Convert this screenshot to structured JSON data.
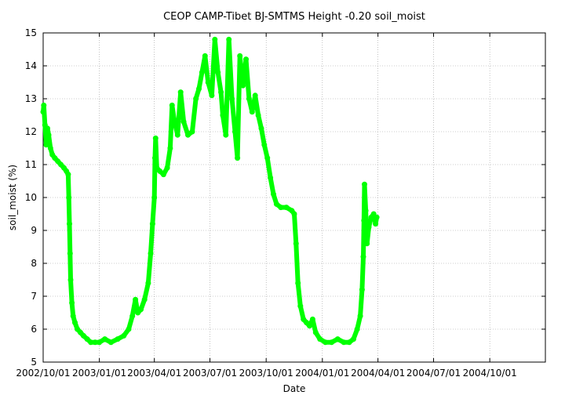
{
  "chart_data": {
    "type": "scatter",
    "title": "CEOP CAMP-Tibet BJ-SMTMS Height -0.20 soil_moist",
    "xlabel": "Date",
    "ylabel": "soil_moist (%)",
    "ylim": [
      5,
      15
    ],
    "xlim": [
      "2002-10-01",
      "2004-12-31"
    ],
    "y_ticks": [
      "5",
      "6",
      "7",
      "8",
      "9",
      "10",
      "11",
      "12",
      "13",
      "14",
      "15"
    ],
    "x_ticks": [
      "2002/10/01",
      "2003/01/01",
      "2003/04/01",
      "2003/07/01",
      "2003/10/01",
      "2004/01/01",
      "2004/04/01",
      "2004/07/01",
      "2004/10/01"
    ],
    "grid": true,
    "marker_color": "#00ff00",
    "series": [
      {
        "points": [
          [
            "2002-10-01",
            12.6
          ],
          [
            "2002-10-02",
            12.8
          ],
          [
            "2002-10-04",
            12.2
          ],
          [
            "2002-10-06",
            11.6
          ],
          [
            "2002-10-08",
            12.1
          ],
          [
            "2002-10-10",
            11.9
          ],
          [
            "2002-10-13",
            11.5
          ],
          [
            "2002-10-16",
            11.3
          ],
          [
            "2002-10-20",
            11.2
          ],
          [
            "2002-10-25",
            11.1
          ],
          [
            "2002-10-30",
            11.0
          ],
          [
            "2002-11-04",
            10.9
          ],
          [
            "2002-11-08",
            10.8
          ],
          [
            "2002-11-11",
            10.7
          ],
          [
            "2002-11-12",
            10.0
          ],
          [
            "2002-11-13",
            9.2
          ],
          [
            "2002-11-14",
            8.3
          ],
          [
            "2002-11-15",
            7.5
          ],
          [
            "2002-11-17",
            6.8
          ],
          [
            "2002-11-19",
            6.4
          ],
          [
            "2002-11-22",
            6.2
          ],
          [
            "2002-11-26",
            6.0
          ],
          [
            "2002-12-01",
            5.9
          ],
          [
            "2002-12-06",
            5.8
          ],
          [
            "2002-12-12",
            5.7
          ],
          [
            "2002-12-18",
            5.6
          ],
          [
            "2002-12-25",
            5.6
          ],
          [
            "2003-01-01",
            5.6
          ],
          [
            "2003-01-10",
            5.7
          ],
          [
            "2003-01-20",
            5.6
          ],
          [
            "2003-01-31",
            5.7
          ],
          [
            "2003-02-10",
            5.8
          ],
          [
            "2003-02-18",
            6.0
          ],
          [
            "2003-02-24",
            6.4
          ],
          [
            "2003-03-01",
            6.9
          ],
          [
            "2003-03-05",
            6.5
          ],
          [
            "2003-03-10",
            6.6
          ],
          [
            "2003-03-16",
            6.9
          ],
          [
            "2003-03-22",
            7.4
          ],
          [
            "2003-03-26",
            8.3
          ],
          [
            "2003-03-29",
            9.2
          ],
          [
            "2003-04-01",
            10.0
          ],
          [
            "2003-04-02",
            11.2
          ],
          [
            "2003-04-03",
            11.8
          ],
          [
            "2003-04-05",
            10.9
          ],
          [
            "2003-04-10",
            10.8
          ],
          [
            "2003-04-16",
            10.7
          ],
          [
            "2003-04-22",
            10.9
          ],
          [
            "2003-04-27",
            11.5
          ],
          [
            "2003-04-30",
            12.8
          ],
          [
            "2003-05-04",
            12.3
          ],
          [
            "2003-05-09",
            11.9
          ],
          [
            "2003-05-14",
            13.2
          ],
          [
            "2003-05-19",
            12.3
          ],
          [
            "2003-05-26",
            11.9
          ],
          [
            "2003-06-02",
            12.0
          ],
          [
            "2003-06-08",
            13.0
          ],
          [
            "2003-06-13",
            13.3
          ],
          [
            "2003-06-18",
            13.8
          ],
          [
            "2003-06-23",
            14.3
          ],
          [
            "2003-06-28",
            13.5
          ],
          [
            "2003-07-04",
            13.1
          ],
          [
            "2003-07-09",
            14.8
          ],
          [
            "2003-07-14",
            13.8
          ],
          [
            "2003-07-19",
            13.2
          ],
          [
            "2003-07-22",
            12.5
          ],
          [
            "2003-07-27",
            11.9
          ],
          [
            "2003-08-01",
            14.8
          ],
          [
            "2003-08-06",
            13.0
          ],
          [
            "2003-08-11",
            12.0
          ],
          [
            "2003-08-15",
            11.2
          ],
          [
            "2003-08-19",
            14.3
          ],
          [
            "2003-08-24",
            13.4
          ],
          [
            "2003-08-29",
            14.2
          ],
          [
            "2003-09-03",
            13.0
          ],
          [
            "2003-09-08",
            12.6
          ],
          [
            "2003-09-13",
            13.1
          ],
          [
            "2003-09-18",
            12.5
          ],
          [
            "2003-09-23",
            12.1
          ],
          [
            "2003-09-28",
            11.6
          ],
          [
            "2003-10-03",
            11.2
          ],
          [
            "2003-10-08",
            10.6
          ],
          [
            "2003-10-13",
            10.1
          ],
          [
            "2003-10-18",
            9.8
          ],
          [
            "2003-10-25",
            9.7
          ],
          [
            "2003-11-03",
            9.7
          ],
          [
            "2003-11-12",
            9.6
          ],
          [
            "2003-11-16",
            9.5
          ],
          [
            "2003-11-19",
            8.6
          ],
          [
            "2003-11-22",
            7.4
          ],
          [
            "2003-11-26",
            6.7
          ],
          [
            "2003-12-01",
            6.3
          ],
          [
            "2003-12-06",
            6.2
          ],
          [
            "2003-12-11",
            6.1
          ],
          [
            "2003-12-16",
            6.3
          ],
          [
            "2003-12-21",
            5.9
          ],
          [
            "2003-12-28",
            5.7
          ],
          [
            "2004-01-06",
            5.6
          ],
          [
            "2004-01-16",
            5.6
          ],
          [
            "2004-01-26",
            5.7
          ],
          [
            "2004-02-05",
            5.6
          ],
          [
            "2004-02-14",
            5.6
          ],
          [
            "2004-02-21",
            5.7
          ],
          [
            "2004-02-27",
            6.0
          ],
          [
            "2004-03-03",
            6.4
          ],
          [
            "2004-03-06",
            7.2
          ],
          [
            "2004-03-08",
            8.2
          ],
          [
            "2004-03-09",
            9.3
          ],
          [
            "2004-03-10",
            10.4
          ],
          [
            "2004-03-12",
            9.6
          ],
          [
            "2004-03-14",
            8.6
          ],
          [
            "2004-03-17",
            9.1
          ],
          [
            "2004-03-21",
            9.4
          ],
          [
            "2004-03-25",
            9.5
          ],
          [
            "2004-03-28",
            9.2
          ],
          [
            "2004-03-30",
            9.4
          ]
        ]
      }
    ]
  }
}
